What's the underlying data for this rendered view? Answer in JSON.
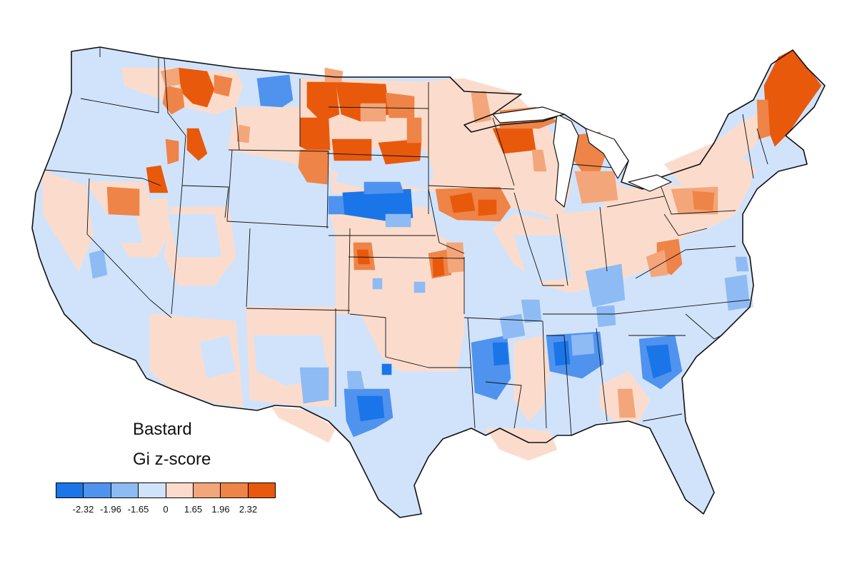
{
  "map": {
    "title": "Bastard",
    "subtitle": "Gi z-score",
    "colors": {
      "background": "#ffffff",
      "border": "#111111",
      "neutral_low": "#d1e3fb",
      "neutral_high": "#fbdccc"
    }
  },
  "legend": {
    "classes": [
      {
        "color": "#1a75e8"
      },
      {
        "color": "#4f93ee"
      },
      {
        "color": "#8fbbf4"
      },
      {
        "color": "#d1e3fb"
      },
      {
        "color": "#fbdccc"
      },
      {
        "color": "#f3a67a"
      },
      {
        "color": "#ee8447"
      },
      {
        "color": "#e8590c"
      }
    ],
    "breaks": [
      {
        "label": "-2.32",
        "position": 1
      },
      {
        "label": "-1.96",
        "position": 2
      },
      {
        "label": "-1.65",
        "position": 3
      },
      {
        "label": "0",
        "position": 4
      },
      {
        "label": "1.65",
        "position": 5
      },
      {
        "label": "1.96",
        "position": 6
      },
      {
        "label": "2.32",
        "position": 7
      }
    ]
  }
}
